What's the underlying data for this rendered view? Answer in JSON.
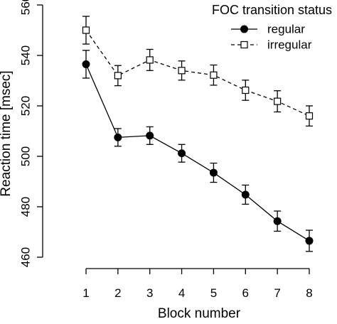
{
  "chart_data": {
    "type": "line",
    "xlabel": "Block number",
    "ylabel": "Reaction time [msec]",
    "x": [
      1,
      2,
      3,
      4,
      5,
      6,
      7,
      8
    ],
    "xticks": [
      "1",
      "2",
      "3",
      "4",
      "5",
      "6",
      "7",
      "8"
    ],
    "yticks": [
      "460",
      "480",
      "500",
      "520",
      "540",
      "560"
    ],
    "ylim": [
      460,
      560
    ],
    "xlim": [
      1,
      8
    ],
    "grid": false,
    "legend": {
      "title": "FOC transition status",
      "position": "top-right"
    },
    "series": [
      {
        "name": "regular",
        "marker": "filled-circle",
        "line_style": "solid",
        "values": [
          536.5,
          507.5,
          508.2,
          501.2,
          493.5,
          484.8,
          474.3,
          466.5
        ],
        "error": [
          5.5,
          3.5,
          3.5,
          3.5,
          3.8,
          3.8,
          4.0,
          4.2
        ]
      },
      {
        "name": "irregular",
        "marker": "open-square",
        "line_style": "dashed",
        "values": [
          550.0,
          532.0,
          538.2,
          534.0,
          532.2,
          526.2,
          521.8,
          516.0
        ],
        "error": [
          5.5,
          4.0,
          4.2,
          3.8,
          4.0,
          4.0,
          4.2,
          4.0
        ]
      }
    ]
  }
}
